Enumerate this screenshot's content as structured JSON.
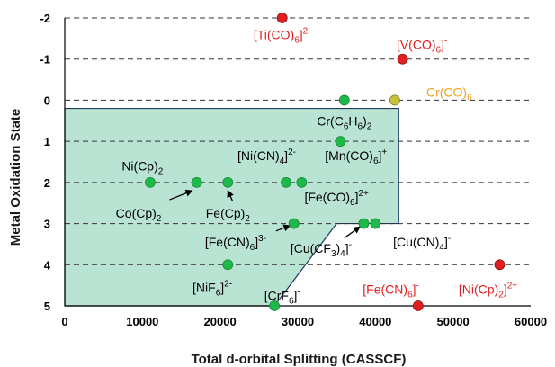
{
  "chart_data": {
    "type": "scatter",
    "title": "",
    "xlabel": "Total d-orbital Splitting (CASSCF)",
    "ylabel": "Metal Oxidation State",
    "xlim": [
      0,
      60000
    ],
    "ylim": [
      -2,
      5
    ],
    "y_inverted": true,
    "x_ticks": [
      "0",
      "10000",
      "20000",
      "30000",
      "40000",
      "50000",
      "60000"
    ],
    "y_ticks": [
      "-2",
      "-1",
      "0",
      "1",
      "2",
      "3",
      "4",
      "5"
    ],
    "grid": "horizontal dashed",
    "colors": {
      "region_fill": "#b9e3d3",
      "region_edge": "#1f3a5f",
      "green": "#1fb84a",
      "red": "#e02020",
      "orange": "#c8c23a",
      "label_red": "#e02020",
      "label_orange": "#f0a020",
      "label_black": "#000000"
    },
    "region": [
      [
        0,
        0.2
      ],
      [
        43000,
        0.2
      ],
      [
        43000,
        3
      ],
      [
        35000,
        3
      ],
      [
        27000,
        5
      ],
      [
        0,
        5
      ]
    ],
    "points": [
      {
        "x": 28000,
        "y": -2,
        "color": "red"
      },
      {
        "x": 43500,
        "y": -1,
        "color": "red"
      },
      {
        "x": 36000,
        "y": 0,
        "color": "green"
      },
      {
        "x": 42500,
        "y": 0,
        "color": "orange"
      },
      {
        "x": 35500,
        "y": 1,
        "color": "green"
      },
      {
        "x": 11000,
        "y": 2,
        "color": "green"
      },
      {
        "x": 17000,
        "y": 2,
        "color": "green"
      },
      {
        "x": 21000,
        "y": 2,
        "color": "green"
      },
      {
        "x": 28500,
        "y": 2,
        "color": "green"
      },
      {
        "x": 30500,
        "y": 2,
        "color": "green"
      },
      {
        "x": 29500,
        "y": 3,
        "color": "green"
      },
      {
        "x": 38500,
        "y": 3,
        "color": "green"
      },
      {
        "x": 40000,
        "y": 3,
        "color": "green"
      },
      {
        "x": 21000,
        "y": 4,
        "color": "green"
      },
      {
        "x": 56000,
        "y": 4,
        "color": "red"
      },
      {
        "x": 27000,
        "y": 5,
        "color": "green"
      },
      {
        "x": 45500,
        "y": 5,
        "color": "red"
      }
    ],
    "annotations": [
      {
        "parts": [
          [
            "[Ti(CO)",
            ""
          ],
          [
            "6",
            "sub"
          ],
          [
            "]",
            ""
          ],
          [
            "2-",
            "sup"
          ]
        ],
        "x": 28000,
        "y": -1.6,
        "color": "label_red"
      },
      {
        "parts": [
          [
            "[V(CO)",
            ""
          ],
          [
            "6",
            "sub"
          ],
          [
            "]",
            ""
          ],
          [
            "-",
            "sup"
          ]
        ],
        "x": 46000,
        "y": -1.35,
        "color": "label_red"
      },
      {
        "parts": [
          [
            "Cr(CO)",
            ""
          ],
          [
            "6",
            "sub"
          ]
        ],
        "x": 49500,
        "y": -0.2,
        "color": "label_orange"
      },
      {
        "parts": [
          [
            "Cr(C",
            ""
          ],
          [
            "6",
            "sub"
          ],
          [
            "H",
            ""
          ],
          [
            "6",
            "sub"
          ],
          [
            ")",
            ""
          ],
          [
            "2",
            "sub"
          ]
        ],
        "x": 36000,
        "y": 0.5,
        "color": "label_black"
      },
      {
        "parts": [
          [
            "[Mn(CO)",
            ""
          ],
          [
            "6",
            "sub"
          ],
          [
            "]",
            ""
          ],
          [
            "+",
            "sup"
          ]
        ],
        "x": 37500,
        "y": 1.35,
        "color": "label_black"
      },
      {
        "parts": [
          [
            "[Ni(CN)",
            ""
          ],
          [
            "4",
            "sub"
          ],
          [
            "]",
            ""
          ],
          [
            "2-",
            "sup"
          ]
        ],
        "x": 26000,
        "y": 1.35,
        "color": "label_black"
      },
      {
        "parts": [
          [
            "Ni(Cp)",
            ""
          ],
          [
            "2",
            "sub"
          ]
        ],
        "x": 10000,
        "y": 1.6,
        "color": "label_black"
      },
      {
        "parts": [
          [
            "[Fe(CO)",
            ""
          ],
          [
            "6",
            "sub"
          ],
          [
            "]",
            ""
          ],
          [
            "2+",
            "sup"
          ]
        ],
        "x": 35000,
        "y": 2.35,
        "color": "label_black"
      },
      {
        "parts": [
          [
            "Co(Cp)",
            ""
          ],
          [
            "2",
            "sub"
          ]
        ],
        "x": 9500,
        "y": 2.75,
        "color": "label_black"
      },
      {
        "parts": [
          [
            "Fe(Cp)",
            ""
          ],
          [
            "2",
            "sub"
          ]
        ],
        "x": 21000,
        "y": 2.75,
        "color": "label_black"
      },
      {
        "parts": [
          [
            "[Fe(CN)",
            ""
          ],
          [
            "6",
            "sub"
          ],
          [
            "]",
            ""
          ],
          [
            "3-",
            "sup"
          ]
        ],
        "x": 22000,
        "y": 3.45,
        "color": "label_black"
      },
      {
        "parts": [
          [
            "[Cu(CF",
            ""
          ],
          [
            "3",
            "sub"
          ],
          [
            ")",
            ""
          ],
          [
            "4",
            "sub"
          ],
          [
            "]",
            ""
          ],
          [
            "-",
            "sup"
          ]
        ],
        "x": 33000,
        "y": 3.6,
        "color": "label_black"
      },
      {
        "parts": [
          [
            "[Cu(CN)",
            ""
          ],
          [
            "4",
            "sub"
          ],
          [
            "]",
            ""
          ],
          [
            "-",
            "sup"
          ]
        ],
        "x": 46000,
        "y": 3.45,
        "color": "label_black"
      },
      {
        "parts": [
          [
            "[NiF",
            ""
          ],
          [
            "6",
            "sub"
          ],
          [
            "]",
            ""
          ],
          [
            "2-",
            "sup"
          ]
        ],
        "x": 19000,
        "y": 4.55,
        "color": "label_black"
      },
      {
        "parts": [
          [
            "[CrF",
            ""
          ],
          [
            "6",
            "sub"
          ],
          [
            "]",
            ""
          ],
          [
            "-",
            "sup"
          ]
        ],
        "x": 28000,
        "y": 4.75,
        "color": "label_black"
      },
      {
        "parts": [
          [
            "[Fe(CN)",
            ""
          ],
          [
            "6",
            "sub"
          ],
          [
            "]",
            ""
          ],
          [
            "-",
            "sup"
          ]
        ],
        "x": 42000,
        "y": 4.6,
        "color": "label_red"
      },
      {
        "parts": [
          [
            "[Ni(Cp)",
            ""
          ],
          [
            "2",
            "sub"
          ],
          [
            "]",
            ""
          ],
          [
            "2+",
            "sup"
          ]
        ],
        "x": 54500,
        "y": 4.6,
        "color": "label_red"
      }
    ],
    "arrows": [
      {
        "from": [
          13500,
          2.42
        ],
        "to": [
          16400,
          2.2
        ]
      },
      {
        "from": [
          21600,
          2.45
        ],
        "to": [
          21000,
          2.2
        ]
      },
      {
        "from": [
          27200,
          3.18
        ],
        "to": [
          29000,
          3.05
        ]
      },
      {
        "from": [
          36000,
          3.35
        ],
        "to": [
          38000,
          3.08
        ]
      }
    ]
  }
}
